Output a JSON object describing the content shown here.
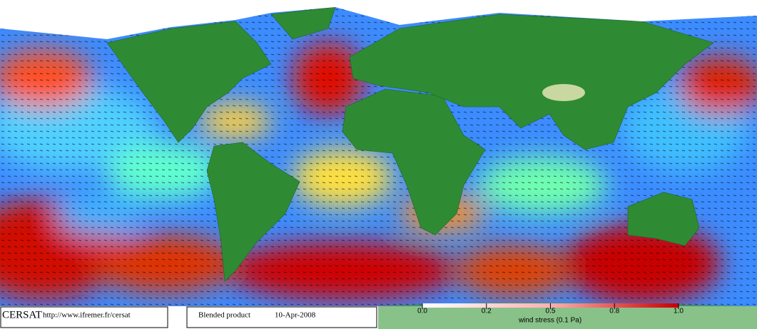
{
  "footer": {
    "source": "CERSAT",
    "url": "http://www.ifremer.fr/cersat",
    "product": "Blended product",
    "date": "10-Apr-2008"
  },
  "colorbar": {
    "ticks": [
      {
        "value": 0,
        "label": "0.0"
      },
      0.2,
      0.5,
      0.8,
      {
        "value": 1,
        "label": "1.0"
      }
    ],
    "label": "wind stress (0.1 Pa)"
  }
}
